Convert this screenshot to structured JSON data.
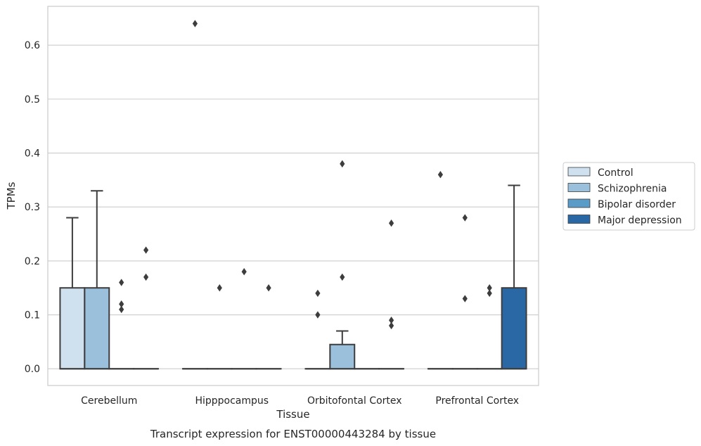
{
  "chart_data": {
    "type": "box",
    "title": "",
    "caption": "Transcript expression for ENST00000443284 by tissue",
    "xlabel": "Tissue",
    "ylabel": "TPMs",
    "ylim": [
      -0.031,
      0.672
    ],
    "yticks": [
      0.0,
      0.1,
      0.2,
      0.3,
      0.4,
      0.5,
      0.6
    ],
    "ytick_labels": [
      "0.0",
      "0.1",
      "0.2",
      "0.3",
      "0.4",
      "0.5",
      "0.6"
    ],
    "grid": true,
    "legend_position": "right",
    "categories": [
      "Cerebellum",
      "Hipppocampus",
      "Orbitofontal Cortex",
      "Prefrontal Cortex"
    ],
    "series": [
      {
        "name": "Control",
        "color": "#cfe0ef",
        "boxes": [
          {
            "q1": 0.0,
            "median": 0.0,
            "q3": 0.15,
            "whisker_low": 0.0,
            "whisker_high": 0.28,
            "outliers": []
          },
          {
            "q1": 0.0,
            "median": 0.0,
            "q3": 0.0,
            "whisker_low": 0.0,
            "whisker_high": 0.0,
            "outliers": [
              0.64
            ]
          },
          {
            "q1": 0.0,
            "median": 0.0,
            "q3": 0.0,
            "whisker_low": 0.0,
            "whisker_high": 0.0,
            "outliers": [
              0.1,
              0.14
            ]
          },
          {
            "q1": 0.0,
            "median": 0.0,
            "q3": 0.0,
            "whisker_low": 0.0,
            "whisker_high": 0.0,
            "outliers": [
              0.36
            ]
          }
        ]
      },
      {
        "name": "Schizophrenia",
        "color": "#9ac0db",
        "boxes": [
          {
            "q1": 0.0,
            "median": 0.0,
            "q3": 0.15,
            "whisker_low": 0.0,
            "whisker_high": 0.33,
            "outliers": []
          },
          {
            "q1": 0.0,
            "median": 0.0,
            "q3": 0.0,
            "whisker_low": 0.0,
            "whisker_high": 0.0,
            "outliers": [
              0.15
            ]
          },
          {
            "q1": 0.0,
            "median": 0.0,
            "q3": 0.045,
            "whisker_low": 0.0,
            "whisker_high": 0.07,
            "outliers": [
              0.17,
              0.38
            ]
          },
          {
            "q1": 0.0,
            "median": 0.0,
            "q3": 0.0,
            "whisker_low": 0.0,
            "whisker_high": 0.0,
            "outliers": [
              0.13,
              0.28
            ]
          }
        ]
      },
      {
        "name": "Bipolar disorder",
        "color": "#5a9bc7",
        "boxes": [
          {
            "q1": 0.0,
            "median": 0.0,
            "q3": 0.0,
            "whisker_low": 0.0,
            "whisker_high": 0.0,
            "outliers": [
              0.11,
              0.12,
              0.16
            ]
          },
          {
            "q1": 0.0,
            "median": 0.0,
            "q3": 0.0,
            "whisker_low": 0.0,
            "whisker_high": 0.0,
            "outliers": [
              0.18
            ]
          },
          {
            "q1": 0.0,
            "median": 0.0,
            "q3": 0.0,
            "whisker_low": 0.0,
            "whisker_high": 0.0,
            "outliers": []
          },
          {
            "q1": 0.0,
            "median": 0.0,
            "q3": 0.0,
            "whisker_low": 0.0,
            "whisker_high": 0.0,
            "outliers": [
              0.14,
              0.15
            ]
          }
        ]
      },
      {
        "name": "Major depression",
        "color": "#2a67a5",
        "boxes": [
          {
            "q1": 0.0,
            "median": 0.0,
            "q3": 0.0,
            "whisker_low": 0.0,
            "whisker_high": 0.0,
            "outliers": [
              0.17,
              0.22
            ]
          },
          {
            "q1": 0.0,
            "median": 0.0,
            "q3": 0.0,
            "whisker_low": 0.0,
            "whisker_high": 0.0,
            "outliers": [
              0.15
            ]
          },
          {
            "q1": 0.0,
            "median": 0.0,
            "q3": 0.0,
            "whisker_low": 0.0,
            "whisker_high": 0.0,
            "outliers": [
              0.08,
              0.09,
              0.27
            ]
          },
          {
            "q1": 0.0,
            "median": 0.0,
            "q3": 0.15,
            "whisker_low": 0.0,
            "whisker_high": 0.34,
            "outliers": []
          }
        ]
      }
    ]
  }
}
